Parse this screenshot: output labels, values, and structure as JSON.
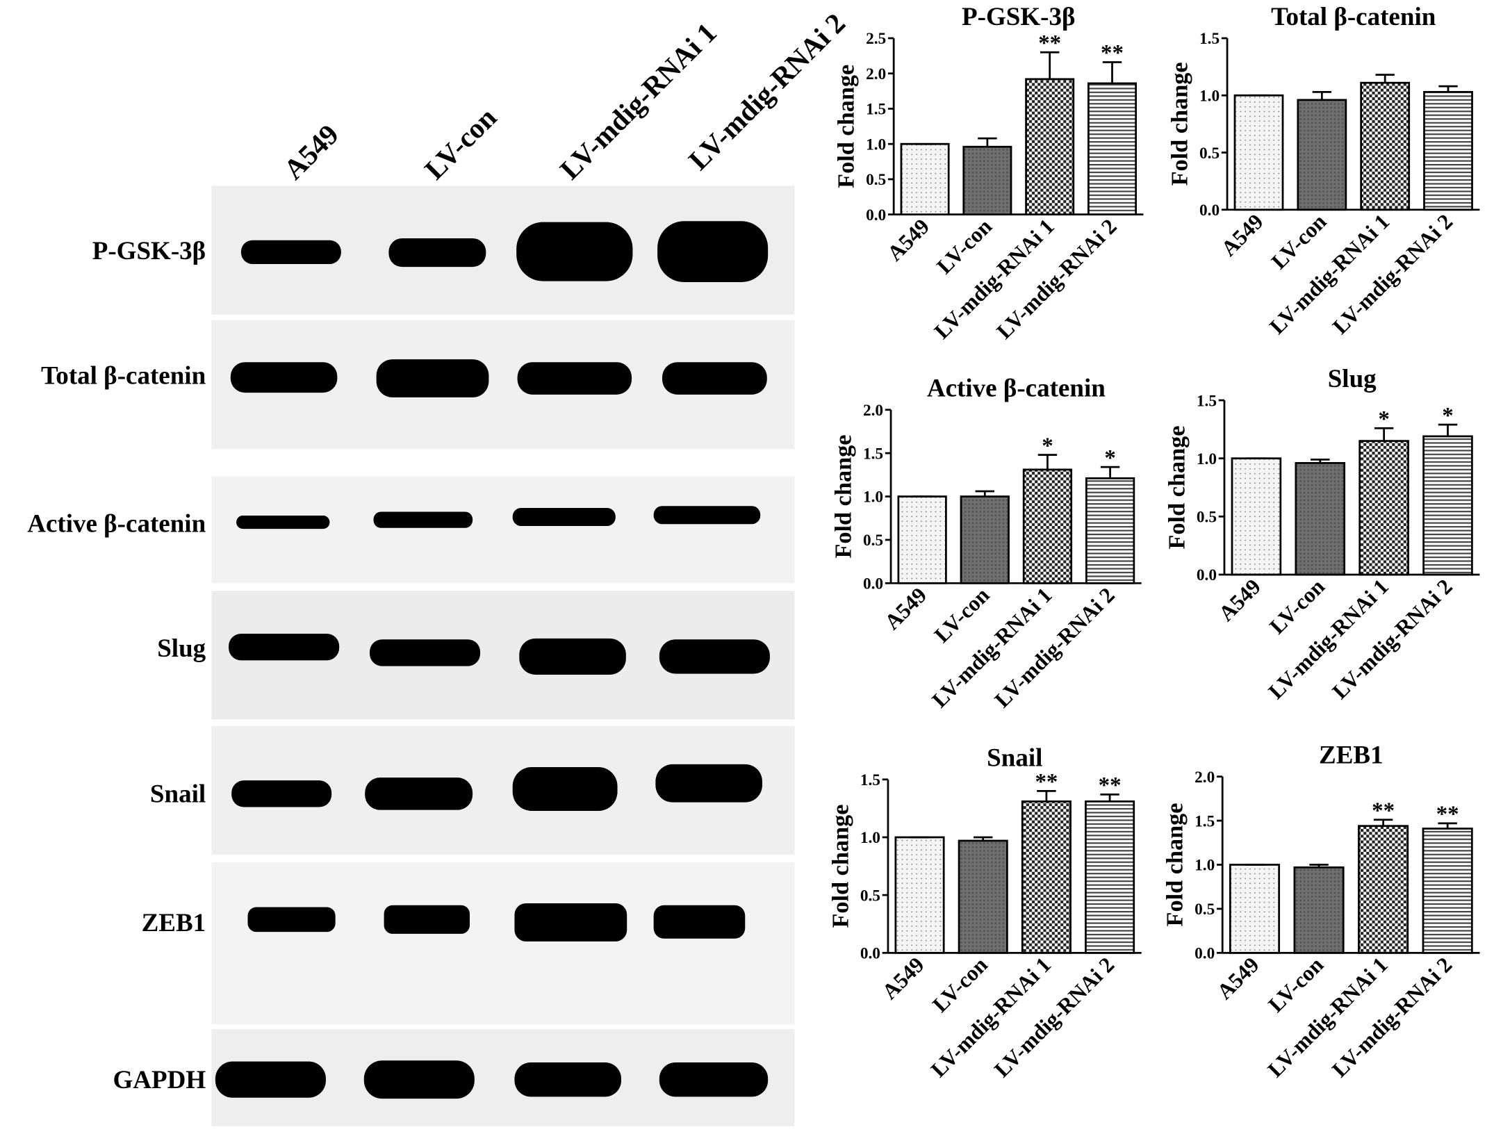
{
  "blot": {
    "lanes": [
      "A549",
      "LV-con",
      "LV-mdig-RNAi 1",
      "LV-mdig-RNAi 2"
    ],
    "rows": [
      "P-GSK-3β",
      "Total β-catenin",
      "Active β-catenin",
      "Slug",
      "Snail",
      "ZEB1",
      "GAPDH"
    ]
  },
  "chart_data": [
    {
      "type": "bar",
      "title": "P-GSK-3β",
      "y_label": "Fold change",
      "categories": [
        "A549",
        "LV-con",
        "LV-mdig-RNAi 1",
        "LV-mdig-RNAi 2"
      ],
      "values": [
        1.0,
        0.96,
        1.92,
        1.86
      ],
      "errors": [
        0,
        0.12,
        0.38,
        0.3
      ],
      "annotations": [
        null,
        null,
        "**",
        "**"
      ],
      "ylim": [
        0,
        2.5
      ],
      "yticks": [
        {
          "value": 0,
          "label": "0.0"
        },
        {
          "value": 0.5,
          "label": "0.5"
        },
        {
          "value": 1,
          "label": "1.0"
        },
        {
          "value": 1.5,
          "label": "1.5"
        },
        {
          "value": 2,
          "label": "2.0"
        },
        {
          "value": 2.5,
          "label": "2.5"
        }
      ]
    },
    {
      "type": "bar",
      "title": "Total β-catenin",
      "y_label": "Fold change",
      "categories": [
        "A549",
        "LV-con",
        "LV-mdig-RNAi 1",
        "LV-mdig-RNAi 2"
      ],
      "values": [
        1.0,
        0.96,
        1.11,
        1.03
      ],
      "errors": [
        0,
        0.07,
        0.07,
        0.05
      ],
      "ylim": [
        0,
        1.5
      ],
      "yticks": [
        {
          "value": 0,
          "label": "0.0"
        },
        {
          "value": 0.5,
          "label": "0.5"
        },
        {
          "value": 1,
          "label": "1.0"
        },
        {
          "value": 1.5,
          "label": "1.5"
        }
      ]
    },
    {
      "type": "bar",
      "title": "Active β-catenin",
      "y_label": "Fold change",
      "categories": [
        "A549",
        "LV-con",
        "LV-mdig-RNAi 1",
        "LV-mdig-RNAi 2"
      ],
      "values": [
        1.0,
        1.0,
        1.31,
        1.21
      ],
      "errors": [
        0,
        0.06,
        0.17,
        0.13
      ],
      "annotations": [
        null,
        null,
        "*",
        "*"
      ],
      "ylim": [
        0,
        2
      ],
      "yticks": [
        {
          "value": 0,
          "label": "0.0"
        },
        {
          "value": 0.5,
          "label": "0.5"
        },
        {
          "value": 1,
          "label": "1.0"
        },
        {
          "value": 1.5,
          "label": "1.5"
        },
        {
          "value": 2,
          "label": "2.0"
        }
      ]
    },
    {
      "type": "bar",
      "title": "Slug",
      "y_label": "Fold change",
      "categories": [
        "A549",
        "LV-con",
        "LV-mdig-RNAi 1",
        "LV-mdig-RNAi 2"
      ],
      "values": [
        1.0,
        0.96,
        1.15,
        1.19
      ],
      "errors": [
        0,
        0.03,
        0.11,
        0.1
      ],
      "annotations": [
        null,
        null,
        "*",
        "*"
      ],
      "ylim": [
        0,
        1.5
      ],
      "yticks": [
        {
          "value": 0,
          "label": "0.0"
        },
        {
          "value": 0.5,
          "label": "0.5"
        },
        {
          "value": 1,
          "label": "1.0"
        },
        {
          "value": 1.5,
          "label": "1.5"
        }
      ]
    },
    {
      "type": "bar",
      "title": "Snail",
      "y_label": "Fold change",
      "categories": [
        "A549",
        "LV-con",
        "LV-mdig-RNAi 1",
        "LV-mdig-RNAi 2"
      ],
      "values": [
        1.0,
        0.97,
        1.31,
        1.31
      ],
      "errors": [
        0,
        0.03,
        0.09,
        0.06
      ],
      "annotations": [
        null,
        null,
        "**",
        "**"
      ],
      "ylim": [
        0,
        1.5
      ],
      "yticks": [
        {
          "value": 0,
          "label": "0.0"
        },
        {
          "value": 0.5,
          "label": "0.5"
        },
        {
          "value": 1,
          "label": "1.0"
        },
        {
          "value": 1.5,
          "label": "1.5"
        }
      ]
    },
    {
      "type": "bar",
      "title": "ZEB1",
      "y_label": "Fold change",
      "categories": [
        "A549",
        "LV-con",
        "LV-mdig-RNAi 1",
        "LV-mdig-RNAi 2"
      ],
      "values": [
        1.0,
        0.97,
        1.44,
        1.41
      ],
      "errors": [
        0,
        0.03,
        0.07,
        0.06
      ],
      "annotations": [
        null,
        null,
        "**",
        "**"
      ],
      "ylim": [
        0,
        2
      ],
      "yticks": [
        {
          "value": 0,
          "label": "0.0"
        },
        {
          "value": 0.5,
          "label": "0.5"
        },
        {
          "value": 1,
          "label": "1.0"
        },
        {
          "value": 1.5,
          "label": "1.5"
        },
        {
          "value": 2,
          "label": "2.0"
        }
      ]
    }
  ]
}
